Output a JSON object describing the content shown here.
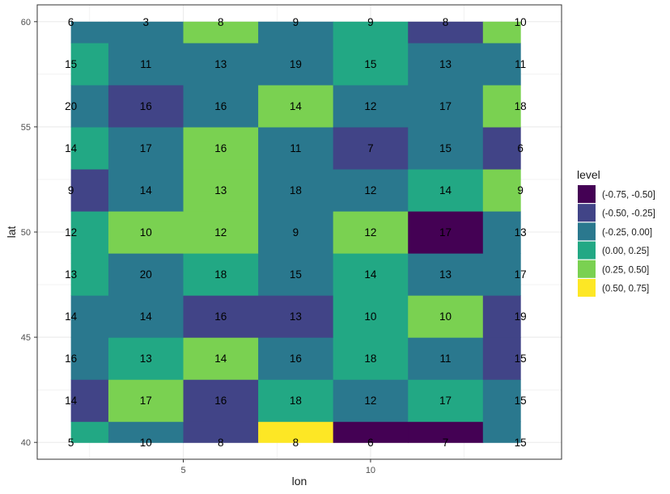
{
  "chart_data": {
    "type": "heatmap",
    "xlabel": "lon",
    "ylabel": "lat",
    "x": [
      2,
      4,
      6,
      8,
      10,
      12,
      14
    ],
    "y": [
      40,
      42,
      44,
      46,
      48,
      50,
      52,
      54,
      56,
      58,
      60
    ],
    "xlim": [
      1.1,
      15.1
    ],
    "ylim": [
      39.2,
      60.8
    ],
    "x_ticks": [
      5,
      10
    ],
    "y_ticks": [
      40,
      45,
      50,
      55,
      60
    ],
    "labels": [
      [
        5,
        10,
        8,
        8,
        6,
        7,
        15
      ],
      [
        14,
        17,
        16,
        18,
        12,
        17,
        15
      ],
      [
        16,
        13,
        14,
        16,
        18,
        11,
        15
      ],
      [
        14,
        14,
        16,
        13,
        10,
        10,
        19
      ],
      [
        13,
        20,
        18,
        15,
        14,
        13,
        17
      ],
      [
        12,
        10,
        12,
        9,
        12,
        17,
        13
      ],
      [
        9,
        14,
        13,
        18,
        12,
        14,
        9
      ],
      [
        14,
        17,
        16,
        11,
        7,
        15,
        6
      ],
      [
        20,
        16,
        16,
        14,
        12,
        17,
        18
      ],
      [
        15,
        11,
        13,
        19,
        15,
        13,
        11
      ],
      [
        6,
        3,
        8,
        9,
        9,
        8,
        10
      ]
    ],
    "level_index": [
      [
        3,
        2,
        1,
        5,
        0,
        0,
        2
      ],
      [
        1,
        4,
        1,
        3,
        2,
        3,
        2
      ],
      [
        2,
        3,
        4,
        2,
        3,
        2,
        1
      ],
      [
        2,
        2,
        1,
        1,
        3,
        4,
        1
      ],
      [
        3,
        2,
        3,
        2,
        3,
        2,
        2
      ],
      [
        3,
        4,
        4,
        2,
        4,
        0,
        2
      ],
      [
        1,
        2,
        4,
        2,
        2,
        3,
        4
      ],
      [
        3,
        2,
        4,
        2,
        1,
        2,
        1
      ],
      [
        2,
        1,
        2,
        4,
        2,
        2,
        4
      ],
      [
        3,
        2,
        2,
        2,
        3,
        2,
        2
      ],
      [
        2,
        2,
        4,
        2,
        3,
        1,
        4
      ]
    ],
    "legend": {
      "title": "level",
      "position": "right",
      "entries": [
        {
          "label": "(-0.75, -0.50]",
          "color": "#440154"
        },
        {
          "label": "(-0.50, -0.25]",
          "color": "#414487"
        },
        {
          "label": "(-0.25, 0.00]",
          "color": "#2A788E"
        },
        {
          "label": "(0.00, 0.25]",
          "color": "#22A884"
        },
        {
          "label": "(0.25, 0.50]",
          "color": "#7AD151"
        },
        {
          "label": "(0.50, 0.75]",
          "color": "#FDE725"
        }
      ]
    },
    "grid": true,
    "panel_background": "#ffffff",
    "grid_color": "#ebebeb"
  }
}
